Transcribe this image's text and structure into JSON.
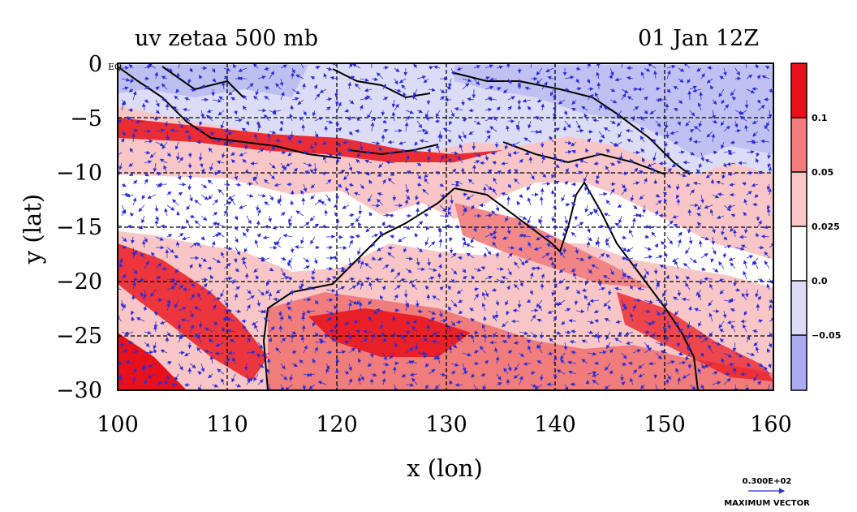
{
  "header": {
    "title_left": "uv zetaa 500 mb",
    "title_right": "01 Jan 12Z"
  },
  "axes": {
    "xlabel": "x (lon)",
    "ylabel": "y (lat)",
    "x_ticks": [
      "100",
      "110",
      "120",
      "130",
      "140",
      "150",
      "160"
    ],
    "y_ticks": [
      "0",
      "−5",
      "−10",
      "−15",
      "−20",
      "−25",
      "−30"
    ],
    "y_top_suffix": "EQ"
  },
  "colorbar": {
    "labels": [
      "0.1",
      "0.05",
      "0.025",
      "0.0",
      "−0.05"
    ],
    "colors": [
      "#e8101a",
      "#f07c7c",
      "#f8c6c6",
      "#ffffff",
      "#dcdcf6",
      "#a9acee"
    ]
  },
  "vector_key": {
    "value": "0.300E+02",
    "label": "MAXIMUM VECTOR"
  },
  "chart_data": {
    "type": "heatmap",
    "title": "uv zetaa 500 mb",
    "subtitle": "01 Jan 12Z",
    "xlabel": "x (lon)",
    "ylabel": "y (lat)",
    "xlim": [
      100,
      160
    ],
    "ylim": [
      -30,
      0
    ],
    "grid": true,
    "levels": [
      -0.05,
      0.0,
      0.025,
      0.05,
      0.1
    ],
    "colors": {
      "lt_-0.05": "#a9acee",
      "-0.05_to_0": "#dcdcf6",
      "0_to_0.025": "#ffffff",
      "0.025_to_0.05": "#f8c6c6",
      "0.05_to_0.1": "#f07c7c",
      "gt_0.1": "#e8101a"
    },
    "vector_field": {
      "variable": "uv",
      "max_vector": "0.300E+02"
    }
  }
}
